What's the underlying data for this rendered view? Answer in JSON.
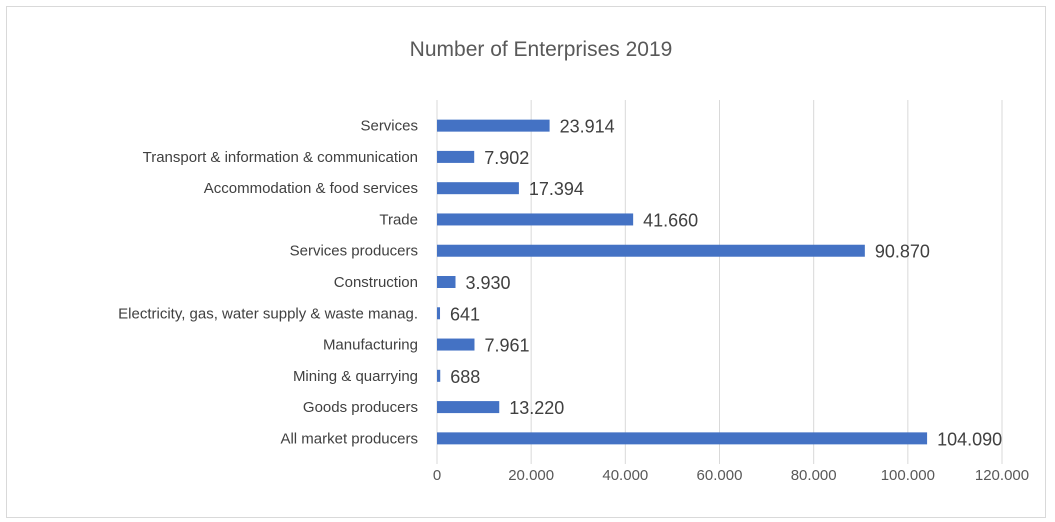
{
  "chart_data": {
    "type": "bar",
    "orientation": "horizontal",
    "title": "Number of Enterprises 2019",
    "categories": [
      "All market producers",
      "Goods producers",
      "Mining & quarrying",
      "Manufacturing",
      "Electricity, gas, water supply & waste manag.",
      "Construction",
      "Services producers",
      "Trade",
      "Accommodation & food services",
      "Transport & information & communication",
      "Services"
    ],
    "values": [
      104090,
      13220,
      688,
      7961,
      641,
      3930,
      90870,
      41660,
      17394,
      7902,
      23914
    ],
    "data_labels": [
      "104.090",
      "13.220",
      "688",
      "7.961",
      "641",
      "3.930",
      "90.870",
      "41.660",
      "17.394",
      "7.902",
      "23.914"
    ],
    "xlim": [
      0,
      120000
    ],
    "xticks": [
      0,
      20000,
      40000,
      60000,
      80000,
      100000,
      120000
    ],
    "xtick_labels": [
      "0",
      "20.000",
      "40.000",
      "60.000",
      "80.000",
      "100.000",
      "120.000"
    ],
    "grid": true,
    "legend": "none",
    "bar_color": "#4472c4"
  }
}
